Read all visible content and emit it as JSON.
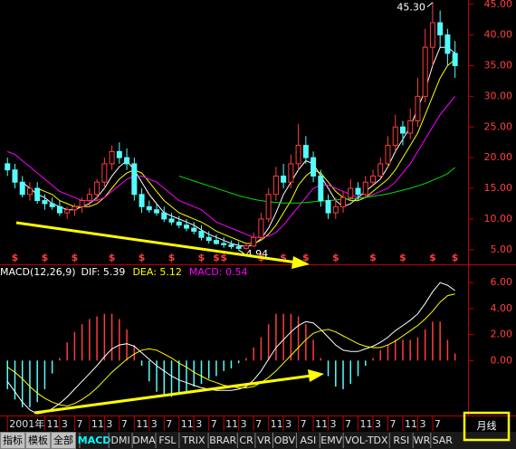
{
  "chart_data": [
    {
      "type": "candlestick",
      "open": [
        19,
        18,
        16,
        14,
        15,
        13,
        12.5,
        12,
        11,
        11.5,
        12,
        13,
        14,
        16,
        19,
        21,
        20,
        19,
        14,
        12,
        11.5,
        11,
        10,
        9.5,
        9,
        8.5,
        8,
        7,
        6.5,
        6,
        5.8,
        5.5,
        5.2,
        5.6,
        7,
        10,
        14,
        17,
        16,
        19,
        22,
        20,
        17,
        13,
        11,
        12,
        13.5,
        15,
        14,
        16,
        17,
        19,
        22,
        25,
        24,
        26,
        30,
        38,
        42,
        40,
        37
      ],
      "high": [
        20,
        19,
        17,
        16,
        16,
        14,
        13.5,
        13,
        12,
        12.5,
        13.5,
        15,
        16.5,
        20,
        22,
        22.5,
        21.5,
        20,
        15,
        13,
        12.5,
        12,
        11,
        10.5,
        10,
        9.5,
        9,
        8,
        7.5,
        7,
        6.5,
        6.3,
        6.2,
        7.8,
        11,
        15,
        18.5,
        19,
        20.5,
        25.5,
        23.5,
        21,
        18,
        14,
        13.5,
        14.5,
        16.5,
        16,
        17,
        18,
        20,
        23.5,
        27,
        26,
        28,
        33,
        41,
        45.3,
        44,
        41,
        39
      ],
      "low": [
        17,
        15,
        13.5,
        13,
        12.5,
        11.5,
        11.5,
        10.5,
        10,
        10.5,
        11,
        12,
        13,
        15,
        18,
        19,
        18,
        13,
        11,
        11,
        10.5,
        9.5,
        9,
        8.5,
        8,
        7.5,
        6.5,
        6,
        5.8,
        5.3,
        5.1,
        4.94,
        5.0,
        5.4,
        6.5,
        9.5,
        13,
        15,
        15,
        18,
        19,
        16,
        12,
        10,
        10,
        11,
        13,
        13,
        13.5,
        15.5,
        16.5,
        18.5,
        21,
        22,
        23,
        25,
        29,
        35,
        38,
        35,
        33
      ],
      "close": [
        18,
        16,
        14,
        15,
        13,
        12.5,
        12,
        11,
        11.5,
        12,
        13,
        14,
        16,
        19,
        21,
        20,
        19,
        14,
        12,
        11.5,
        11,
        10,
        9.5,
        9,
        8.5,
        8,
        7,
        6.5,
        6,
        5.8,
        5.5,
        5.2,
        5.6,
        7,
        10,
        14,
        17,
        16,
        19,
        22,
        20,
        17,
        13,
        11,
        12,
        13.5,
        15,
        14,
        16,
        17,
        19,
        22,
        25,
        24,
        26,
        30,
        38,
        42,
        40,
        37,
        35
      ],
      "up_color": "#ff3c3c",
      "down_color": "#54fcfc",
      "series": [
        {
          "color": "#ffffff",
          "values": [
            null,
            null,
            16,
            15,
            14,
            13.5,
            12.5,
            12,
            11.5,
            11.5,
            12,
            12.5,
            13.5,
            15,
            17,
            18.5,
            19.5,
            18,
            16,
            14,
            12.5,
            11,
            10.5,
            10,
            9.5,
            9,
            8.2,
            7.5,
            7,
            6.5,
            6,
            5.7,
            5.5,
            5.8,
            6.8,
            8.5,
            11,
            14,
            16,
            18,
            19.5,
            19,
            17,
            15,
            13,
            12,
            12.5,
            13.5,
            14.5,
            15.5,
            16.5,
            18.5,
            21,
            23,
            25,
            28,
            31,
            35,
            38,
            38,
            37
          ]
        },
        {
          "color": "#ffff00",
          "values": [
            null,
            null,
            null,
            null,
            15,
            14.5,
            14,
            13,
            12.5,
            12,
            12,
            12,
            12.5,
            13.5,
            15,
            16.5,
            17.5,
            18,
            17.5,
            16,
            14.5,
            13,
            12,
            11,
            10.5,
            10,
            9.5,
            8.8,
            8,
            7.5,
            7,
            6.5,
            6,
            6,
            6.5,
            7.5,
            9,
            11,
            13,
            15.5,
            17,
            18,
            17.5,
            16,
            14.5,
            13.5,
            13,
            13,
            13.5,
            14.5,
            15.5,
            16.5,
            18,
            20,
            22,
            24,
            27,
            30,
            33,
            35,
            36
          ]
        },
        {
          "color": "#ff00ff",
          "values": [
            21,
            20.5,
            19.5,
            18.5,
            17.5,
            16.5,
            15.5,
            14.5,
            14,
            13.5,
            13,
            13,
            13,
            13.5,
            14.5,
            15.5,
            16.5,
            17,
            17,
            16.5,
            16,
            15,
            14,
            13,
            12.5,
            12,
            11.5,
            10.5,
            9.5,
            9,
            8.5,
            8,
            7.5,
            7,
            7,
            7.2,
            7.8,
            9,
            10.5,
            12,
            13.5,
            15,
            15.5,
            15.5,
            15,
            14.5,
            14,
            13.5,
            13.5,
            14,
            14.5,
            15,
            16,
            17.5,
            19,
            21,
            23,
            25,
            27,
            28.5,
            30
          ]
        },
        {
          "color": "#00e000",
          "values": [
            null,
            null,
            null,
            null,
            null,
            null,
            null,
            null,
            null,
            null,
            null,
            null,
            null,
            null,
            null,
            null,
            null,
            null,
            null,
            null,
            null,
            null,
            null,
            17,
            16.6,
            16.2,
            15.8,
            15.4,
            15,
            14.6,
            14.2,
            13.8,
            13.5,
            13.2,
            13,
            12.8,
            12.7,
            12.6,
            12.6,
            12.6,
            12.7,
            12.8,
            12.9,
            13,
            13.1,
            13.2,
            13.3,
            13.4,
            13.5,
            13.7,
            13.9,
            14.1,
            14.4,
            14.7,
            15,
            15.4,
            15.8,
            16.3,
            16.8,
            17.4,
            18.4
          ]
        }
      ],
      "ylim": [
        2.9,
        45.7
      ],
      "yticks": [
        {
          "value": 5,
          "label": "5.00"
        },
        {
          "value": 10,
          "label": "10.00"
        },
        {
          "value": 15,
          "label": "15.00"
        },
        {
          "value": 20,
          "label": "20.00"
        },
        {
          "value": 25,
          "label": "25.00"
        },
        {
          "value": 30,
          "label": "30.00"
        },
        {
          "value": 35,
          "label": "35.00"
        },
        {
          "value": 40,
          "label": "40.00"
        },
        {
          "value": 45,
          "label": "45.00"
        }
      ],
      "annotations": [
        {
          "text": "45.30",
          "x": 57,
          "y": 45.3
        },
        {
          "text": "4.94",
          "x": 31,
          "y": 4.94
        }
      ],
      "signals": {
        "text": "$",
        "color": "#ff3c3c",
        "x": [
          1,
          5,
          9,
          14,
          18,
          22,
          26,
          28,
          29,
          34,
          37,
          40,
          44,
          49,
          53,
          57,
          60
        ]
      }
    },
    {
      "type": "macd",
      "title": "MACD(12,26,9)",
      "series": [
        {
          "label": "DIF: 5.39",
          "color": "#ffffff",
          "values": [
            -1.6,
            -2.4,
            -3.2,
            -3.8,
            -4.1,
            -4.0,
            -3.7,
            -3.3,
            -2.8,
            -2.2,
            -1.6,
            -1.0,
            -0.4,
            0.3,
            0.9,
            1.2,
            1.3,
            1.1,
            0.6,
            0.1,
            -0.4,
            -0.8,
            -1.2,
            -1.5,
            -1.7,
            -1.9,
            -2.1,
            -2.2,
            -2.3,
            -2.3,
            -2.3,
            -2.2,
            -2.0,
            -1.5,
            -0.8,
            0.1,
            1.0,
            1.6,
            2.2,
            2.7,
            3.0,
            2.9,
            2.4,
            1.8,
            1.2,
            0.8,
            0.7,
            0.7,
            0.9,
            1.1,
            1.4,
            1.8,
            2.3,
            2.7,
            3.1,
            3.6,
            4.4,
            5.3,
            6.0,
            5.8,
            5.39
          ]
        },
        {
          "label": "DEA: 5.12",
          "color": "#ffff00",
          "values": [
            -0.5,
            -0.9,
            -1.4,
            -2.0,
            -2.5,
            -2.9,
            -3.2,
            -3.4,
            -3.5,
            -3.3,
            -3.0,
            -2.6,
            -2.1,
            -1.5,
            -0.9,
            -0.4,
            0.1,
            0.5,
            0.8,
            0.9,
            0.8,
            0.5,
            0.2,
            -0.2,
            -0.5,
            -0.9,
            -1.2,
            -1.5,
            -1.7,
            -1.9,
            -2.0,
            -2.1,
            -2.1,
            -2.0,
            -1.7,
            -1.3,
            -0.8,
            -0.2,
            0.4,
            1.0,
            1.6,
            2.1,
            2.3,
            2.4,
            2.2,
            1.9,
            1.6,
            1.3,
            1.1,
            1.0,
            1.0,
            1.2,
            1.5,
            1.9,
            2.3,
            2.7,
            3.2,
            3.8,
            4.5,
            5.0,
            5.12
          ]
        },
        {
          "label": "MACD: 0.54",
          "color": "#ff00ff",
          "kind": "histogram",
          "up_color": "#ff3c3c",
          "down_color": "#54fcfc",
          "values": [
            -2.2,
            -3.0,
            -3.6,
            -3.6,
            -3.2,
            -2.2,
            -1.0,
            0.2,
            1.4,
            2.2,
            2.8,
            3.2,
            3.4,
            3.6,
            3.6,
            3.2,
            2.4,
            1.2,
            -0.4,
            -1.6,
            -2.4,
            -2.6,
            -2.8,
            -2.6,
            -2.4,
            -2.0,
            -1.8,
            -1.4,
            -1.2,
            -0.8,
            -0.6,
            -0.2,
            0.2,
            1.0,
            1.8,
            2.8,
            3.6,
            3.6,
            3.6,
            3.4,
            2.8,
            1.6,
            0.2,
            -1.2,
            -2.0,
            -2.2,
            -1.8,
            -1.2,
            -0.4,
            0.2,
            0.8,
            1.2,
            1.6,
            1.6,
            1.6,
            1.8,
            2.4,
            3.0,
            3.0,
            1.6,
            0.54
          ]
        }
      ],
      "ylim": [
        -4.3,
        7.2
      ],
      "yticks": [
        {
          "value": 0,
          "label": "0.00"
        },
        {
          "value": 2,
          "label": "2.00"
        },
        {
          "value": 4,
          "label": "4.00"
        },
        {
          "value": 6,
          "label": "6.00"
        }
      ]
    }
  ],
  "x_axis": {
    "xlim": [
      -1,
      61.5
    ],
    "xticks": [
      {
        "value": 0,
        "label": "2001年"
      },
      {
        "value": 5,
        "label": "11"
      },
      {
        "value": 7,
        "label": "3"
      },
      {
        "value": 9,
        "label": "7"
      },
      {
        "value": 11,
        "label": "11"
      },
      {
        "value": 13,
        "label": "3"
      },
      {
        "value": 15,
        "label": "7"
      },
      {
        "value": 17,
        "label": "11"
      },
      {
        "value": 19,
        "label": "3"
      },
      {
        "value": 21,
        "label": "7"
      },
      {
        "value": 23,
        "label": "11"
      },
      {
        "value": 25,
        "label": "3"
      },
      {
        "value": 27,
        "label": "7"
      },
      {
        "value": 29,
        "label": "11"
      },
      {
        "value": 31,
        "label": "3"
      },
      {
        "value": 33,
        "label": "7"
      },
      {
        "value": 35,
        "label": "11"
      },
      {
        "value": 37,
        "label": "3"
      },
      {
        "value": 39,
        "label": "7"
      },
      {
        "value": 41,
        "label": "11"
      },
      {
        "value": 43,
        "label": "3"
      },
      {
        "value": 45,
        "label": "7"
      },
      {
        "value": 47,
        "label": "11"
      },
      {
        "value": 49,
        "label": "3"
      },
      {
        "value": 51,
        "label": "7"
      },
      {
        "value": 53,
        "label": "11"
      },
      {
        "value": 55,
        "label": "3"
      },
      {
        "value": 57,
        "label": "7"
      }
    ]
  },
  "toolbar": {
    "buttons": [
      "指标",
      "模板",
      "全部"
    ],
    "tabs": [
      "MACD",
      "DMI",
      "DMA",
      "FSL",
      "TRIX",
      "BRAR",
      "CR",
      "VR",
      "OBV",
      "ASI",
      "EMV",
      "VOL-TDX",
      "RSI",
      "WR",
      "SAR"
    ],
    "active_tab": 0,
    "period": "月线"
  }
}
